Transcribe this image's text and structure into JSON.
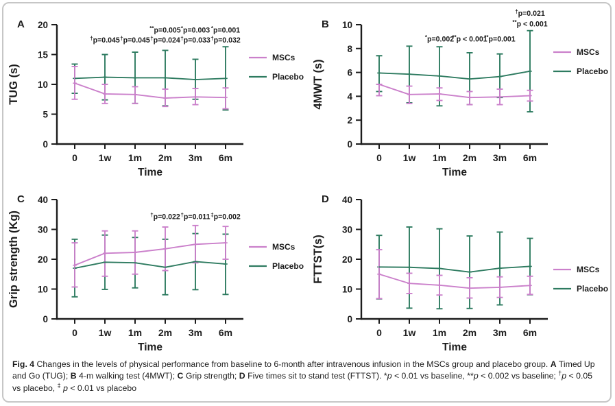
{
  "colors": {
    "mscs": "#cb80cb",
    "placebo": "#2e7b60",
    "axis": "#1c1c1c",
    "card_border": "#c6c6c6"
  },
  "legend": {
    "mscs_label": "MSCs",
    "placebo_label": "Placebo"
  },
  "caption": {
    "segments": [
      {
        "t": "Fig. 4",
        "b": true
      },
      {
        "t": " Changes in the levels of physical performance from baseline to 6-month after intravenous infusion in the MSCs group and placebo group. "
      },
      {
        "t": "A",
        "b": true
      },
      {
        "t": " Timed Up and Go (TUG); "
      },
      {
        "t": "B",
        "b": true
      },
      {
        "t": " 4-m walking test (4MWT); "
      },
      {
        "t": "C",
        "b": true
      },
      {
        "t": " Grip strength; "
      },
      {
        "t": "D",
        "b": true
      },
      {
        "t": " Five times sit to stand test (FTTST). *"
      },
      {
        "t": "p",
        "i": true
      },
      {
        "t": " < 0.01 vs baseline, **"
      },
      {
        "t": "p",
        "i": true
      },
      {
        "t": " < 0.002 vs baseline; "
      },
      {
        "t": "†",
        "sup": true
      },
      {
        "t": "p",
        "i": true
      },
      {
        "t": " < 0.05 vs placebo, "
      },
      {
        "t": "‡",
        "sup": true
      },
      {
        "t": " "
      },
      {
        "t": "p",
        "i": true
      },
      {
        "t": " < 0.01 vs placebo"
      }
    ]
  },
  "chart_data": [
    {
      "id": "A",
      "type": "line",
      "panel_label": "A",
      "ylabel": "TUG (s)",
      "xlabel": "Time",
      "categories": [
        "0",
        "1w",
        "1m",
        "2m",
        "3m",
        "6m"
      ],
      "ylim": [
        0,
        20
      ],
      "yticks": [
        0,
        5,
        10,
        15,
        20
      ],
      "legend_position": "right",
      "series": [
        {
          "name": "MSCs",
          "color": "#cb80cb",
          "values": [
            10.2,
            8.4,
            8.3,
            7.7,
            7.9,
            7.8
          ],
          "lo": [
            7.5,
            6.8,
            6.8,
            6.3,
            6.6,
            5.9
          ],
          "hi": [
            13.0,
            10.0,
            9.6,
            9.2,
            9.3,
            9.4
          ]
        },
        {
          "name": "Placebo",
          "color": "#2e7b60",
          "values": [
            11.0,
            11.2,
            11.1,
            11.1,
            10.8,
            11.0
          ],
          "lo": [
            8.5,
            7.4,
            6.8,
            6.4,
            7.5,
            5.7
          ],
          "hi": [
            13.4,
            15.0,
            15.4,
            15.7,
            14.2,
            16.3
          ]
        }
      ],
      "annotations": [
        {
          "cat": "2m",
          "prefix": "**",
          "label": "p=0.005",
          "y": 18.7
        },
        {
          "cat": "3m",
          "prefix": "*",
          "label": "p=0.003",
          "y": 18.7
        },
        {
          "cat": "6m",
          "prefix": "*",
          "label": "p=0.001",
          "y": 18.7
        },
        {
          "cat": "1w",
          "prefix": "†",
          "label": "p=0.045",
          "y": 17.0
        },
        {
          "cat": "1m",
          "prefix": "†",
          "label": "p=0.045",
          "y": 17.0
        },
        {
          "cat": "2m",
          "prefix": "†",
          "label": "p=0.024",
          "y": 17.0
        },
        {
          "cat": "3m",
          "prefix": "†",
          "label": "p=0.033",
          "y": 17.0
        },
        {
          "cat": "6m",
          "prefix": "†",
          "label": "p=0.032",
          "y": 17.0
        }
      ]
    },
    {
      "id": "B",
      "type": "line",
      "panel_label": "B",
      "ylabel": "4MWT (s)",
      "xlabel": "Time",
      "categories": [
        "0",
        "1w",
        "1m",
        "2m",
        "3m",
        "6m"
      ],
      "ylim": [
        0,
        10
      ],
      "yticks": [
        0,
        2,
        4,
        6,
        8,
        10
      ],
      "legend_position": "right",
      "series": [
        {
          "name": "MSCs",
          "color": "#cb80cb",
          "values": [
            5.0,
            4.15,
            4.2,
            3.9,
            3.95,
            4.05
          ],
          "lo": [
            4.05,
            3.4,
            3.65,
            3.3,
            3.3,
            3.6
          ],
          "hi": [
            5.0,
            4.85,
            4.7,
            4.4,
            4.6,
            4.5
          ]
        },
        {
          "name": "Placebo",
          "color": "#2e7b60",
          "values": [
            5.95,
            5.85,
            5.7,
            5.45,
            5.65,
            6.1
          ],
          "lo": [
            4.4,
            3.45,
            3.2,
            3.3,
            3.9,
            2.7
          ],
          "hi": [
            7.4,
            8.2,
            8.15,
            7.65,
            7.55,
            9.5
          ]
        }
      ],
      "annotations": [
        {
          "cat": "1m",
          "prefix": "*",
          "label": "p=0.002",
          "y": 8.6
        },
        {
          "cat": "2m",
          "prefix": "**",
          "label": "p < 0.001",
          "y": 8.6
        },
        {
          "cat": "3m",
          "prefix": "**",
          "label": "p=0.001",
          "y": 8.6
        },
        {
          "cat": "6m",
          "prefix": "†",
          "label": "p=0.021",
          "y": 10.75
        },
        {
          "cat": "6m",
          "prefix": "**",
          "label": "p < 0.001",
          "y": 9.85
        }
      ]
    },
    {
      "id": "C",
      "type": "line",
      "panel_label": "C",
      "ylabel": "Grip strength (Kg)",
      "xlabel": "Time",
      "categories": [
        "0",
        "1w",
        "1m",
        "2m",
        "3m",
        "6m"
      ],
      "ylim": [
        0,
        40
      ],
      "yticks": [
        0,
        10,
        20,
        30,
        40
      ],
      "legend_position": "right",
      "series": [
        {
          "name": "MSCs",
          "color": "#cb80cb",
          "values": [
            18.0,
            22.0,
            22.3,
            23.5,
            25.0,
            25.5
          ],
          "lo": [
            10.7,
            14.3,
            15.0,
            16.2,
            18.8,
            20.0
          ],
          "hi": [
            25.5,
            29.5,
            29.5,
            30.8,
            31.3,
            31.0
          ]
        },
        {
          "name": "Placebo",
          "color": "#2e7b60",
          "values": [
            17.0,
            19.0,
            18.8,
            17.3,
            19.2,
            18.4
          ],
          "lo": [
            7.4,
            9.9,
            10.4,
            8.1,
            9.8,
            8.2
          ],
          "hi": [
            26.7,
            28.1,
            27.3,
            26.7,
            28.6,
            28.4
          ]
        }
      ],
      "annotations": [
        {
          "cat": "2m",
          "prefix": "†",
          "label": "p=0.022",
          "y": 33.5
        },
        {
          "cat": "3m",
          "prefix": "†",
          "label": "p=0.011",
          "y": 33.5
        },
        {
          "cat": "6m",
          "prefix": "‡",
          "label": "p=0.002",
          "y": 33.5
        }
      ]
    },
    {
      "id": "D",
      "type": "line",
      "panel_label": "D",
      "ylabel": "FTTST(s)",
      "xlabel": "Time",
      "categories": [
        "0",
        "1w",
        "1m",
        "2m",
        "3m",
        "6m"
      ],
      "ylim": [
        0,
        40
      ],
      "yticks": [
        0,
        10,
        20,
        30,
        40
      ],
      "legend_position": "right",
      "series": [
        {
          "name": "MSCs",
          "color": "#cb80cb",
          "values": [
            15.0,
            11.9,
            11.3,
            10.3,
            10.6,
            11.2
          ],
          "lo": [
            6.8,
            8.5,
            8.0,
            7.0,
            7.2,
            8.2
          ],
          "hi": [
            23.2,
            15.3,
            14.6,
            13.8,
            14.1,
            14.3
          ]
        },
        {
          "name": "Placebo",
          "color": "#2e7b60",
          "values": [
            17.4,
            17.3,
            16.9,
            15.7,
            17.0,
            17.6
          ],
          "lo": [
            6.7,
            3.6,
            3.4,
            3.5,
            4.7,
            8.1
          ],
          "hi": [
            28.0,
            30.8,
            30.2,
            27.8,
            29.1,
            27.0
          ]
        }
      ],
      "annotations": []
    }
  ]
}
